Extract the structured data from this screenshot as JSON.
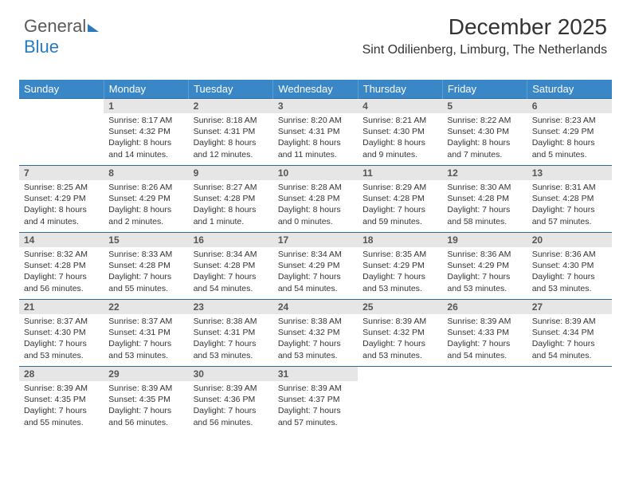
{
  "logo": {
    "text1": "General",
    "text2": "Blue"
  },
  "header": {
    "title": "December 2025",
    "subtitle": "Sint Odilienberg, Limburg, The Netherlands"
  },
  "styling": {
    "header_bg": "#3a87c8",
    "header_text": "#ffffff",
    "daynum_bg": "#e6e6e6",
    "row_divider": "#2a6aa0",
    "body_text": "#333333",
    "logo_gray": "#5a5a5a",
    "logo_blue": "#2a7ac0",
    "background": "#ffffff",
    "title_fontsize": 28,
    "subtitle_fontsize": 16,
    "weekday_fontsize": 13,
    "daynum_fontsize": 12,
    "celltext_fontsize": 10.5
  },
  "weekdays": [
    "Sunday",
    "Monday",
    "Tuesday",
    "Wednesday",
    "Thursday",
    "Friday",
    "Saturday"
  ],
  "weeks": [
    [
      null,
      {
        "n": "1",
        "sr": "8:17 AM",
        "ss": "4:32 PM",
        "dl": "8 hours and 14 minutes."
      },
      {
        "n": "2",
        "sr": "8:18 AM",
        "ss": "4:31 PM",
        "dl": "8 hours and 12 minutes."
      },
      {
        "n": "3",
        "sr": "8:20 AM",
        "ss": "4:31 PM",
        "dl": "8 hours and 11 minutes."
      },
      {
        "n": "4",
        "sr": "8:21 AM",
        "ss": "4:30 PM",
        "dl": "8 hours and 9 minutes."
      },
      {
        "n": "5",
        "sr": "8:22 AM",
        "ss": "4:30 PM",
        "dl": "8 hours and 7 minutes."
      },
      {
        "n": "6",
        "sr": "8:23 AM",
        "ss": "4:29 PM",
        "dl": "8 hours and 5 minutes."
      }
    ],
    [
      {
        "n": "7",
        "sr": "8:25 AM",
        "ss": "4:29 PM",
        "dl": "8 hours and 4 minutes."
      },
      {
        "n": "8",
        "sr": "8:26 AM",
        "ss": "4:29 PM",
        "dl": "8 hours and 2 minutes."
      },
      {
        "n": "9",
        "sr": "8:27 AM",
        "ss": "4:28 PM",
        "dl": "8 hours and 1 minute."
      },
      {
        "n": "10",
        "sr": "8:28 AM",
        "ss": "4:28 PM",
        "dl": "8 hours and 0 minutes."
      },
      {
        "n": "11",
        "sr": "8:29 AM",
        "ss": "4:28 PM",
        "dl": "7 hours and 59 minutes."
      },
      {
        "n": "12",
        "sr": "8:30 AM",
        "ss": "4:28 PM",
        "dl": "7 hours and 58 minutes."
      },
      {
        "n": "13",
        "sr": "8:31 AM",
        "ss": "4:28 PM",
        "dl": "7 hours and 57 minutes."
      }
    ],
    [
      {
        "n": "14",
        "sr": "8:32 AM",
        "ss": "4:28 PM",
        "dl": "7 hours and 56 minutes."
      },
      {
        "n": "15",
        "sr": "8:33 AM",
        "ss": "4:28 PM",
        "dl": "7 hours and 55 minutes."
      },
      {
        "n": "16",
        "sr": "8:34 AM",
        "ss": "4:28 PM",
        "dl": "7 hours and 54 minutes."
      },
      {
        "n": "17",
        "sr": "8:34 AM",
        "ss": "4:29 PM",
        "dl": "7 hours and 54 minutes."
      },
      {
        "n": "18",
        "sr": "8:35 AM",
        "ss": "4:29 PM",
        "dl": "7 hours and 53 minutes."
      },
      {
        "n": "19",
        "sr": "8:36 AM",
        "ss": "4:29 PM",
        "dl": "7 hours and 53 minutes."
      },
      {
        "n": "20",
        "sr": "8:36 AM",
        "ss": "4:30 PM",
        "dl": "7 hours and 53 minutes."
      }
    ],
    [
      {
        "n": "21",
        "sr": "8:37 AM",
        "ss": "4:30 PM",
        "dl": "7 hours and 53 minutes."
      },
      {
        "n": "22",
        "sr": "8:37 AM",
        "ss": "4:31 PM",
        "dl": "7 hours and 53 minutes."
      },
      {
        "n": "23",
        "sr": "8:38 AM",
        "ss": "4:31 PM",
        "dl": "7 hours and 53 minutes."
      },
      {
        "n": "24",
        "sr": "8:38 AM",
        "ss": "4:32 PM",
        "dl": "7 hours and 53 minutes."
      },
      {
        "n": "25",
        "sr": "8:39 AM",
        "ss": "4:32 PM",
        "dl": "7 hours and 53 minutes."
      },
      {
        "n": "26",
        "sr": "8:39 AM",
        "ss": "4:33 PM",
        "dl": "7 hours and 54 minutes."
      },
      {
        "n": "27",
        "sr": "8:39 AM",
        "ss": "4:34 PM",
        "dl": "7 hours and 54 minutes."
      }
    ],
    [
      {
        "n": "28",
        "sr": "8:39 AM",
        "ss": "4:35 PM",
        "dl": "7 hours and 55 minutes."
      },
      {
        "n": "29",
        "sr": "8:39 AM",
        "ss": "4:35 PM",
        "dl": "7 hours and 56 minutes."
      },
      {
        "n": "30",
        "sr": "8:39 AM",
        "ss": "4:36 PM",
        "dl": "7 hours and 56 minutes."
      },
      {
        "n": "31",
        "sr": "8:39 AM",
        "ss": "4:37 PM",
        "dl": "7 hours and 57 minutes."
      },
      null,
      null,
      null
    ]
  ],
  "labels": {
    "sunrise": "Sunrise:",
    "sunset": "Sunset:",
    "daylight": "Daylight:"
  }
}
